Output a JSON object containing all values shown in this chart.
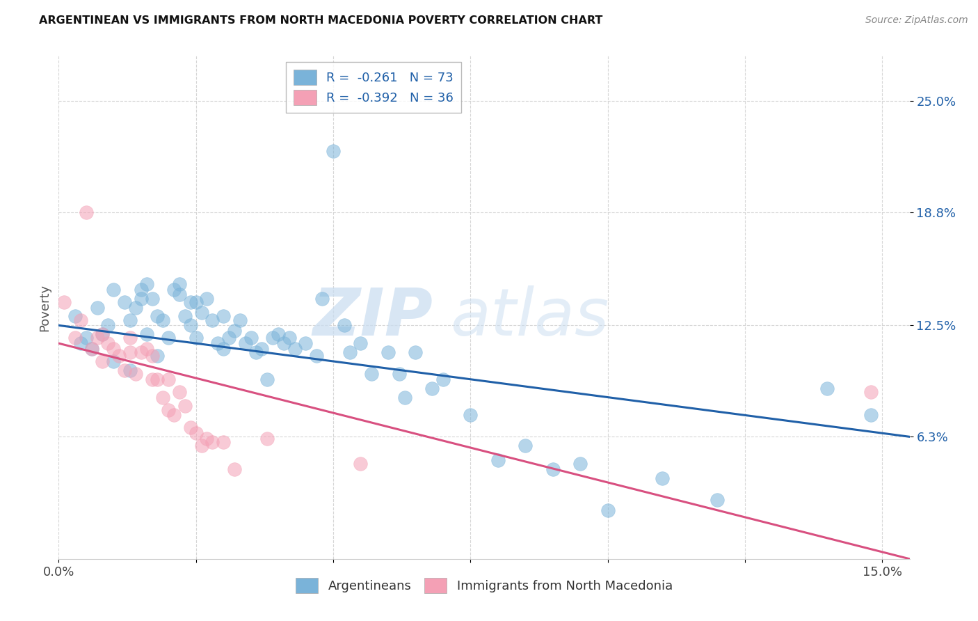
{
  "title": "ARGENTINEAN VS IMMIGRANTS FROM NORTH MACEDONIA POVERTY CORRELATION CHART",
  "source": "Source: ZipAtlas.com",
  "ylabel": "Poverty",
  "yticks_labels": [
    "25.0%",
    "18.8%",
    "12.5%",
    "6.3%"
  ],
  "ytick_vals": [
    0.25,
    0.188,
    0.125,
    0.063
  ],
  "xlim": [
    0.0,
    0.155
  ],
  "ylim": [
    -0.005,
    0.275
  ],
  "blue_R": "-0.261",
  "blue_N": "73",
  "pink_R": "-0.392",
  "pink_N": "36",
  "blue_color": "#7ab3d9",
  "pink_color": "#f4a0b5",
  "blue_line_color": "#2060a8",
  "pink_line_color": "#d85080",
  "watermark_zip": "ZIP",
  "watermark_atlas": "atlas",
  "blue_trend_x0": 0.0,
  "blue_trend_x1": 0.155,
  "blue_trend_y0": 0.125,
  "blue_trend_y1": 0.063,
  "pink_trend_x0": 0.0,
  "pink_trend_x1": 0.155,
  "pink_trend_y0": 0.115,
  "pink_trend_y1": -0.005,
  "blue_points_x": [
    0.003,
    0.004,
    0.005,
    0.006,
    0.007,
    0.008,
    0.009,
    0.01,
    0.01,
    0.012,
    0.013,
    0.013,
    0.014,
    0.015,
    0.015,
    0.016,
    0.016,
    0.017,
    0.018,
    0.018,
    0.019,
    0.02,
    0.021,
    0.022,
    0.022,
    0.023,
    0.024,
    0.024,
    0.025,
    0.025,
    0.026,
    0.027,
    0.028,
    0.029,
    0.03,
    0.03,
    0.031,
    0.032,
    0.033,
    0.034,
    0.035,
    0.036,
    0.037,
    0.038,
    0.039,
    0.04,
    0.041,
    0.042,
    0.043,
    0.045,
    0.047,
    0.048,
    0.05,
    0.052,
    0.053,
    0.055,
    0.057,
    0.06,
    0.062,
    0.063,
    0.065,
    0.068,
    0.07,
    0.075,
    0.08,
    0.085,
    0.09,
    0.095,
    0.1,
    0.11,
    0.12,
    0.14,
    0.148
  ],
  "blue_points_y": [
    0.13,
    0.115,
    0.118,
    0.112,
    0.135,
    0.12,
    0.125,
    0.145,
    0.105,
    0.138,
    0.128,
    0.1,
    0.135,
    0.145,
    0.14,
    0.148,
    0.12,
    0.14,
    0.13,
    0.108,
    0.128,
    0.118,
    0.145,
    0.142,
    0.148,
    0.13,
    0.138,
    0.125,
    0.138,
    0.118,
    0.132,
    0.14,
    0.128,
    0.115,
    0.13,
    0.112,
    0.118,
    0.122,
    0.128,
    0.115,
    0.118,
    0.11,
    0.112,
    0.095,
    0.118,
    0.12,
    0.115,
    0.118,
    0.112,
    0.115,
    0.108,
    0.14,
    0.222,
    0.125,
    0.11,
    0.115,
    0.098,
    0.11,
    0.098,
    0.085,
    0.11,
    0.09,
    0.095,
    0.075,
    0.05,
    0.058,
    0.045,
    0.048,
    0.022,
    0.04,
    0.028,
    0.09,
    0.075
  ],
  "pink_points_x": [
    0.001,
    0.003,
    0.004,
    0.005,
    0.006,
    0.007,
    0.008,
    0.008,
    0.009,
    0.01,
    0.011,
    0.012,
    0.013,
    0.013,
    0.014,
    0.015,
    0.016,
    0.017,
    0.017,
    0.018,
    0.019,
    0.02,
    0.02,
    0.021,
    0.022,
    0.023,
    0.024,
    0.025,
    0.026,
    0.027,
    0.028,
    0.03,
    0.032,
    0.038,
    0.055,
    0.148
  ],
  "pink_points_y": [
    0.138,
    0.118,
    0.128,
    0.188,
    0.112,
    0.118,
    0.12,
    0.105,
    0.115,
    0.112,
    0.108,
    0.1,
    0.11,
    0.118,
    0.098,
    0.11,
    0.112,
    0.108,
    0.095,
    0.095,
    0.085,
    0.095,
    0.078,
    0.075,
    0.088,
    0.08,
    0.068,
    0.065,
    0.058,
    0.062,
    0.06,
    0.06,
    0.045,
    0.062,
    0.048,
    0.088
  ],
  "xtick_positions": [
    0.0,
    0.025,
    0.05,
    0.075,
    0.1,
    0.125,
    0.15
  ],
  "grid_color": "#cccccc",
  "grid_style": "--",
  "bubble_size": 200,
  "bubble_alpha": 0.55
}
